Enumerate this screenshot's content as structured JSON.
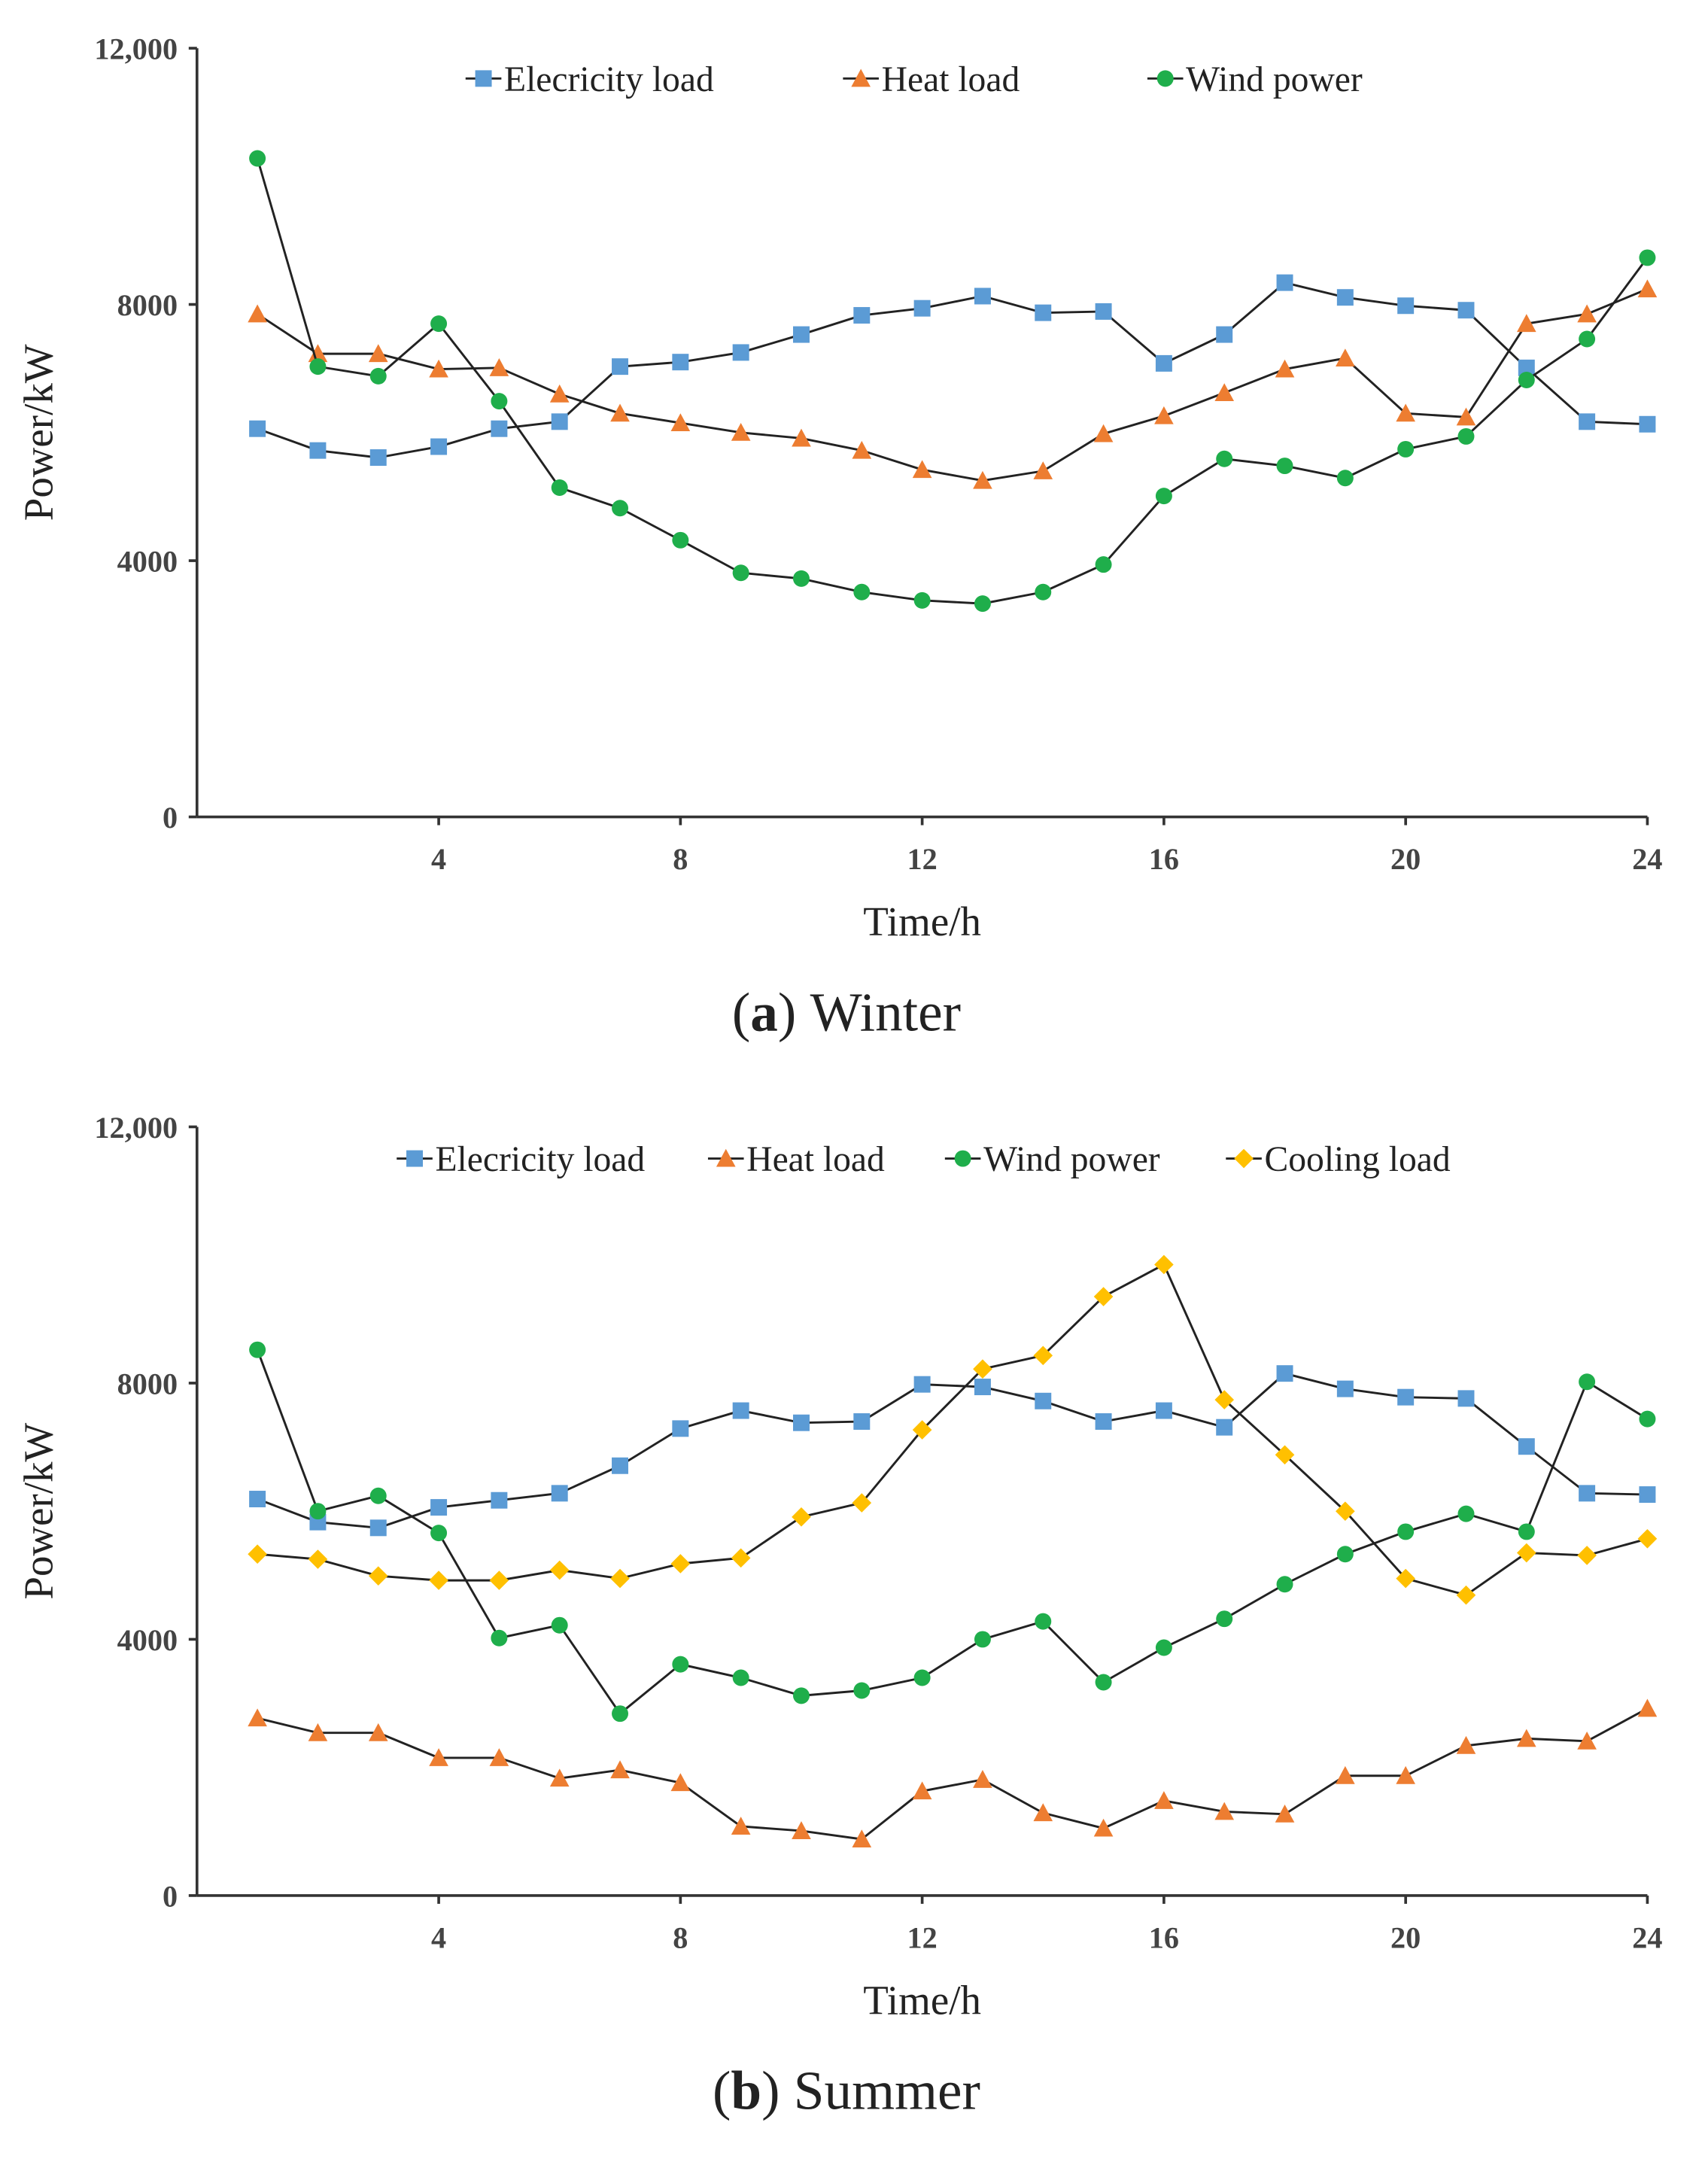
{
  "chart_data": [
    {
      "type": "line",
      "caption_letter": "a",
      "caption_text": "Winter",
      "xlabel": "Time/h",
      "ylabel": "Power/kW",
      "xlim": [
        0,
        24
      ],
      "ylim": [
        0,
        12000
      ],
      "xticks": [
        4,
        8,
        12,
        16,
        20,
        24
      ],
      "yticks": [
        0,
        4000,
        8000,
        12000
      ],
      "ytick_labels": [
        "0",
        "4000",
        "8000",
        "12,000"
      ],
      "legend_position": "top",
      "x": [
        1,
        2,
        3,
        4,
        5,
        6,
        7,
        8,
        9,
        10,
        11,
        12,
        13,
        14,
        15,
        16,
        17,
        18,
        19,
        20,
        21,
        22,
        23,
        24
      ],
      "series": [
        {
          "name": "Elecricity load",
          "color": "#5b9bd5",
          "marker": "square",
          "values": [
            6060,
            5720,
            5610,
            5780,
            6060,
            6170,
            7030,
            7100,
            7250,
            7530,
            7830,
            7940,
            8130,
            7870,
            7890,
            7080,
            7530,
            8340,
            8110,
            7980,
            7910,
            7010,
            6170,
            6130
          ]
        },
        {
          "name": "Heat load",
          "color": "#ed7d31",
          "marker": "triangle",
          "values": [
            7850,
            7230,
            7230,
            6990,
            7010,
            6600,
            6300,
            6150,
            6000,
            5910,
            5720,
            5420,
            5250,
            5400,
            5980,
            6260,
            6620,
            6990,
            7160,
            6300,
            6240,
            7700,
            7850,
            8240
          ]
        },
        {
          "name": "Wind power",
          "color": "#1fae4b",
          "marker": "circle",
          "values": [
            10280,
            7030,
            6880,
            7700,
            6490,
            5140,
            4820,
            4320,
            3810,
            3720,
            3510,
            3380,
            3330,
            3510,
            3940,
            5010,
            5590,
            5480,
            5290,
            5740,
            5940,
            6820,
            7460,
            8730
          ]
        }
      ]
    },
    {
      "type": "line",
      "caption_letter": "b",
      "caption_text": "Summer",
      "xlabel": "Time/h",
      "ylabel": "Power/kW",
      "xlim": [
        0,
        24
      ],
      "ylim": [
        0,
        12000
      ],
      "xticks": [
        4,
        8,
        12,
        16,
        20,
        24
      ],
      "yticks": [
        0,
        4000,
        8000,
        12000
      ],
      "ytick_labels": [
        "0",
        "4000",
        "8000",
        "12,000"
      ],
      "legend_position": "top",
      "x": [
        1,
        2,
        3,
        4,
        5,
        6,
        7,
        8,
        9,
        10,
        11,
        12,
        13,
        14,
        15,
        16,
        17,
        18,
        19,
        20,
        21,
        22,
        23,
        24
      ],
      "series": [
        {
          "name": "Elecricity load",
          "color": "#5b9bd5",
          "marker": "square",
          "values": [
            6190,
            5830,
            5740,
            6060,
            6170,
            6280,
            6710,
            7290,
            7570,
            7380,
            7400,
            7980,
            7940,
            7720,
            7400,
            7570,
            7310,
            8150,
            7910,
            7780,
            7760,
            7010,
            6280,
            6260
          ]
        },
        {
          "name": "Heat load",
          "color": "#ed7d31",
          "marker": "triangle",
          "values": [
            2770,
            2540,
            2540,
            2150,
            2150,
            1830,
            1960,
            1760,
            1080,
            1010,
            880,
            1630,
            1810,
            1290,
            1050,
            1480,
            1310,
            1270,
            1870,
            1870,
            2340,
            2450,
            2410,
            2920
          ]
        },
        {
          "name": "Wind power",
          "color": "#1fae4b",
          "marker": "circle",
          "values": [
            8520,
            6000,
            6240,
            5660,
            4020,
            4220,
            2840,
            3610,
            3400,
            3120,
            3200,
            3400,
            4000,
            4280,
            3330,
            3870,
            4320,
            4860,
            5330,
            5680,
            5960,
            5680,
            8020,
            7440
          ]
        },
        {
          "name": "Cooling load",
          "color": "#ffc000",
          "marker": "diamond",
          "values": [
            5330,
            5250,
            4990,
            4920,
            4920,
            5080,
            4950,
            5180,
            5270,
            5910,
            6130,
            7270,
            8220,
            8430,
            9350,
            9850,
            7740,
            6880,
            6000,
            4950,
            4690,
            5350,
            5310,
            5570
          ]
        }
      ]
    }
  ]
}
